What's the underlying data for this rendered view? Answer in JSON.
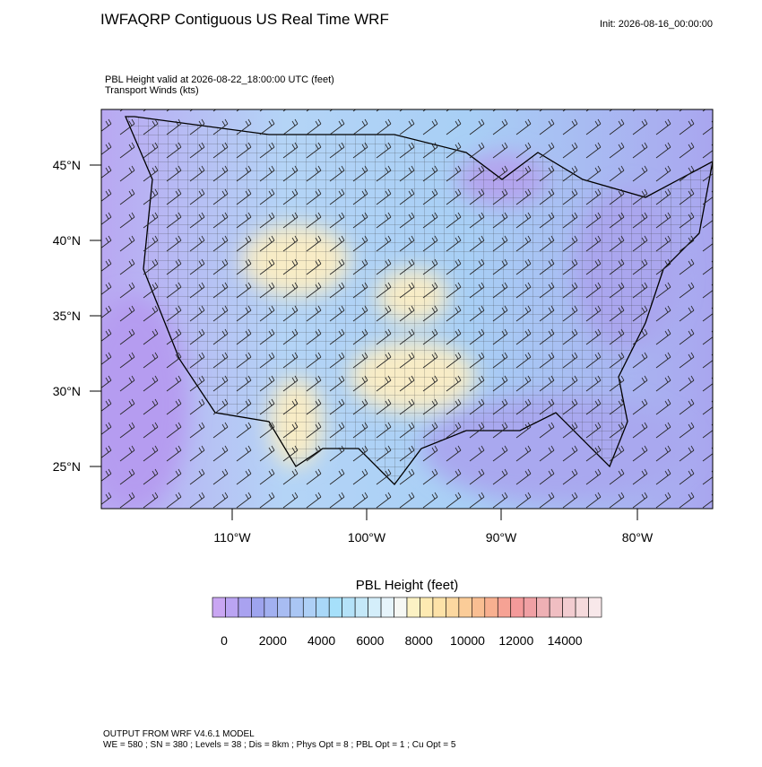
{
  "header": {
    "title": "IWFAQRP Contiguous US Real Time WRF",
    "init": "Init: 2026-08-16_00:00:00"
  },
  "map": {
    "subtitle_lines": [
      "PBL Height valid at 2026-08-22_18:00:00 UTC   (feet)",
      "Transport Winds   (kts)"
    ],
    "lat_labels": [
      "45°N",
      "40°N",
      "35°N",
      "30°N",
      "25°N"
    ],
    "lon_labels": [
      "110°W",
      "100°W",
      "90°W",
      "80°W"
    ]
  },
  "colorbar": {
    "title": "PBL Height  (feet)",
    "labels": [
      "0",
      "2000",
      "4000",
      "6000",
      "8000",
      "10000",
      "12000",
      "14000"
    ],
    "colors": [
      "#c9a6f2",
      "#baa4f2",
      "#a9a2f0",
      "#9ea4ee",
      "#a2b0f0",
      "#a8bcf2",
      "#aac6f4",
      "#aed0f6",
      "#a9d8f8",
      "#a6e0fa",
      "#b4e2f8",
      "#c4e8f8",
      "#d4eefa",
      "#e6f4fb",
      "#f6f8f4",
      "#fcf2c4",
      "#fdeab2",
      "#fde2a8",
      "#fcd8a0",
      "#fbcc98",
      "#f9be92",
      "#f8b090",
      "#f6a294",
      "#f49a9a",
      "#f0a0a4",
      "#eeb0b4",
      "#f0bec2",
      "#f2ccd0",
      "#f5dadc",
      "#f8e8ea"
    ]
  },
  "footer": {
    "lines": [
      "OUTPUT FROM WRF V4.6.1 MODEL",
      "WE = 580 ; SN = 380 ; Levels = 38 ; Dis = 8km ; Phys Opt = 8 ; PBL Opt = 1 ; Cu Opt = 5"
    ]
  }
}
